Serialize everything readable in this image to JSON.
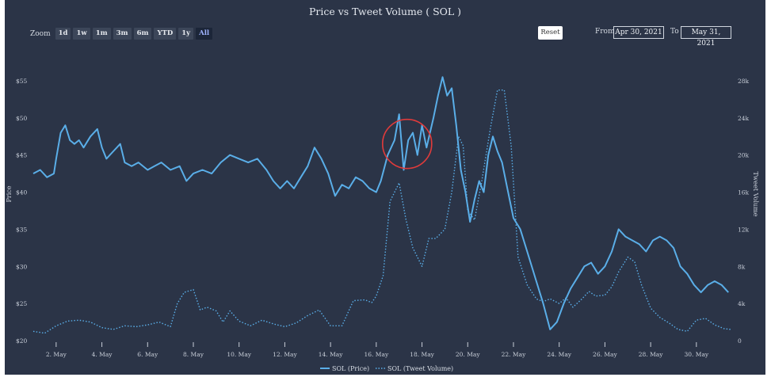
{
  "chart_data": {
    "type": "line",
    "title": "Price vs Tweet Volume ( SOL )",
    "y_left": {
      "label": "Price",
      "min": 20,
      "max": 55,
      "ticks": [
        20,
        25,
        30,
        35,
        40,
        45,
        50,
        55
      ],
      "tick_labels": [
        "$20",
        "$25",
        "$30",
        "$35",
        "$40",
        "$45",
        "$50",
        "$55"
      ]
    },
    "y_right": {
      "label": "Tweet Volume",
      "min": 0,
      "max": 28000,
      "ticks": [
        0,
        4000,
        8000,
        12000,
        16000,
        20000,
        24000,
        28000
      ],
      "tick_labels": [
        "0",
        "4k",
        "8k",
        "12k",
        "16k",
        "20k",
        "24k",
        "28k"
      ]
    },
    "x_axis": {
      "start_day": 1,
      "end_day": 31.6,
      "ticks": [
        2,
        4,
        6,
        8,
        10,
        12,
        14,
        16,
        18,
        20,
        22,
        24,
        26,
        28,
        30
      ],
      "tick_labels": [
        "2. May",
        "4. May",
        "6. May",
        "8. May",
        "10. May",
        "12. May",
        "14. May",
        "16. May",
        "18. May",
        "20. May",
        "22. May",
        "24. May",
        "26. May",
        "28. May",
        "30. May"
      ]
    },
    "series": [
      {
        "name": "SOL (Price)",
        "color": "#5aaee8",
        "style": "solid",
        "points": [
          [
            1,
            42.5
          ],
          [
            1.3,
            43
          ],
          [
            1.6,
            42
          ],
          [
            1.9,
            42.5
          ],
          [
            2,
            44.5
          ],
          [
            2.2,
            48
          ],
          [
            2.4,
            49
          ],
          [
            2.6,
            47
          ],
          [
            2.8,
            46.5
          ],
          [
            3,
            47
          ],
          [
            3.2,
            46
          ],
          [
            3.5,
            47.5
          ],
          [
            3.8,
            48.5
          ],
          [
            4,
            46
          ],
          [
            4.2,
            44.5
          ],
          [
            4.5,
            45.5
          ],
          [
            4.8,
            46.5
          ],
          [
            5,
            44
          ],
          [
            5.3,
            43.5
          ],
          [
            5.6,
            44
          ],
          [
            6,
            43
          ],
          [
            6.3,
            43.5
          ],
          [
            6.6,
            44
          ],
          [
            7,
            43
          ],
          [
            7.4,
            43.5
          ],
          [
            7.7,
            41.5
          ],
          [
            8,
            42.5
          ],
          [
            8.4,
            43
          ],
          [
            8.8,
            42.5
          ],
          [
            9.2,
            44
          ],
          [
            9.6,
            45
          ],
          [
            10,
            44.5
          ],
          [
            10.4,
            44
          ],
          [
            10.8,
            44.5
          ],
          [
            11.2,
            43
          ],
          [
            11.5,
            41.5
          ],
          [
            11.8,
            40.5
          ],
          [
            12.1,
            41.5
          ],
          [
            12.4,
            40.5
          ],
          [
            12.7,
            42
          ],
          [
            13,
            43.5
          ],
          [
            13.3,
            46
          ],
          [
            13.6,
            44.5
          ],
          [
            13.9,
            42.5
          ],
          [
            14.2,
            39.5
          ],
          [
            14.5,
            41
          ],
          [
            14.8,
            40.5
          ],
          [
            15.1,
            42
          ],
          [
            15.4,
            41.5
          ],
          [
            15.7,
            40.5
          ],
          [
            16,
            40
          ],
          [
            16.2,
            41.5
          ],
          [
            16.5,
            45
          ],
          [
            16.8,
            47
          ],
          [
            17,
            50.5
          ],
          [
            17.2,
            43
          ],
          [
            17.4,
            47
          ],
          [
            17.6,
            48
          ],
          [
            17.8,
            45
          ],
          [
            18,
            49
          ],
          [
            18.2,
            46
          ],
          [
            18.5,
            50
          ],
          [
            18.7,
            53
          ],
          [
            18.9,
            55.5
          ],
          [
            19.1,
            53
          ],
          [
            19.3,
            54
          ],
          [
            19.5,
            49
          ],
          [
            19.7,
            43
          ],
          [
            19.9,
            40
          ],
          [
            20.1,
            36
          ],
          [
            20.3,
            39
          ],
          [
            20.5,
            41.5
          ],
          [
            20.7,
            40
          ],
          [
            20.9,
            45
          ],
          [
            21.1,
            47.5
          ],
          [
            21.3,
            45.5
          ],
          [
            21.5,
            44
          ],
          [
            21.7,
            41
          ],
          [
            22,
            36.5
          ],
          [
            22.3,
            35
          ],
          [
            22.6,
            32
          ],
          [
            23,
            28
          ],
          [
            23.3,
            25
          ],
          [
            23.6,
            21.5
          ],
          [
            23.9,
            22.5
          ],
          [
            24.2,
            25
          ],
          [
            24.5,
            27
          ],
          [
            24.8,
            28.5
          ],
          [
            25.1,
            30
          ],
          [
            25.4,
            30.5
          ],
          [
            25.7,
            29
          ],
          [
            26,
            30
          ],
          [
            26.3,
            32
          ],
          [
            26.6,
            35
          ],
          [
            26.9,
            34
          ],
          [
            27.2,
            33.5
          ],
          [
            27.5,
            33
          ],
          [
            27.8,
            32
          ],
          [
            28.1,
            33.5
          ],
          [
            28.4,
            34
          ],
          [
            28.7,
            33.5
          ],
          [
            29,
            32.5
          ],
          [
            29.3,
            30
          ],
          [
            29.6,
            29
          ],
          [
            29.9,
            27.5
          ],
          [
            30.2,
            26.5
          ],
          [
            30.5,
            27.5
          ],
          [
            30.8,
            28
          ],
          [
            31.1,
            27.5
          ],
          [
            31.4,
            26.5
          ]
        ]
      },
      {
        "name": "SOL (Tweet Volume)",
        "color": "#5aaee8",
        "style": "dotted",
        "points": [
          [
            1,
            1000
          ],
          [
            1.5,
            800
          ],
          [
            2,
            1600
          ],
          [
            2.5,
            2100
          ],
          [
            3,
            2200
          ],
          [
            3.5,
            2000
          ],
          [
            4,
            1400
          ],
          [
            4.5,
            1200
          ],
          [
            5,
            1600
          ],
          [
            5.5,
            1500
          ],
          [
            6,
            1700
          ],
          [
            6.5,
            2000
          ],
          [
            7,
            1500
          ],
          [
            7.3,
            4000
          ],
          [
            7.6,
            5200
          ],
          [
            8,
            5500
          ],
          [
            8.3,
            3300
          ],
          [
            8.6,
            3600
          ],
          [
            9,
            3200
          ],
          [
            9.3,
            2000
          ],
          [
            9.6,
            3200
          ],
          [
            10,
            2100
          ],
          [
            10.5,
            1600
          ],
          [
            11,
            2200
          ],
          [
            11.5,
            1800
          ],
          [
            12,
            1500
          ],
          [
            12.5,
            1900
          ],
          [
            13,
            2700
          ],
          [
            13.5,
            3300
          ],
          [
            14,
            1600
          ],
          [
            14.5,
            1600
          ],
          [
            15,
            4300
          ],
          [
            15.5,
            4400
          ],
          [
            15.8,
            4100
          ],
          [
            16,
            4800
          ],
          [
            16.3,
            7000
          ],
          [
            16.6,
            15000
          ],
          [
            17,
            17000
          ],
          [
            17.3,
            13000
          ],
          [
            17.6,
            10000
          ],
          [
            18,
            8000
          ],
          [
            18.3,
            11000
          ],
          [
            18.6,
            11000
          ],
          [
            19,
            12000
          ],
          [
            19.3,
            16000
          ],
          [
            19.6,
            22000
          ],
          [
            19.8,
            21000
          ],
          [
            20,
            14000
          ],
          [
            20.3,
            13000
          ],
          [
            20.6,
            17000
          ],
          [
            21,
            23000
          ],
          [
            21.3,
            27000
          ],
          [
            21.6,
            27000
          ],
          [
            21.9,
            21000
          ],
          [
            22.2,
            9000
          ],
          [
            22.6,
            6000
          ],
          [
            23,
            4500
          ],
          [
            23.3,
            4200
          ],
          [
            23.6,
            4500
          ],
          [
            24,
            4000
          ],
          [
            24.3,
            4600
          ],
          [
            24.6,
            3600
          ],
          [
            25,
            4500
          ],
          [
            25.3,
            5300
          ],
          [
            25.6,
            4800
          ],
          [
            26,
            4900
          ],
          [
            26.3,
            5800
          ],
          [
            26.6,
            7400
          ],
          [
            27,
            9000
          ],
          [
            27.3,
            8500
          ],
          [
            27.6,
            6000
          ],
          [
            28,
            3500
          ],
          [
            28.4,
            2500
          ],
          [
            28.8,
            1900
          ],
          [
            29.2,
            1200
          ],
          [
            29.6,
            1000
          ],
          [
            30,
            2200
          ],
          [
            30.4,
            2400
          ],
          [
            30.8,
            1700
          ],
          [
            31.2,
            1300
          ],
          [
            31.5,
            1200
          ]
        ]
      }
    ],
    "annotation": {
      "type": "circle",
      "day": 17.35,
      "price": 46.5,
      "color": "#e03b3b"
    },
    "legend": {
      "position": "bottom-center"
    }
  },
  "toolbar": {
    "zoom_label": "Zoom",
    "zoom_buttons": [
      "1d",
      "1w",
      "1m",
      "3m",
      "6m",
      "YTD",
      "1y",
      "All"
    ],
    "active_zoom": "All",
    "reset_label": "Reset",
    "from_label": "From",
    "from_value": "Apr 30, 2021",
    "to_label": "To",
    "to_value": "May 31, 2021"
  }
}
